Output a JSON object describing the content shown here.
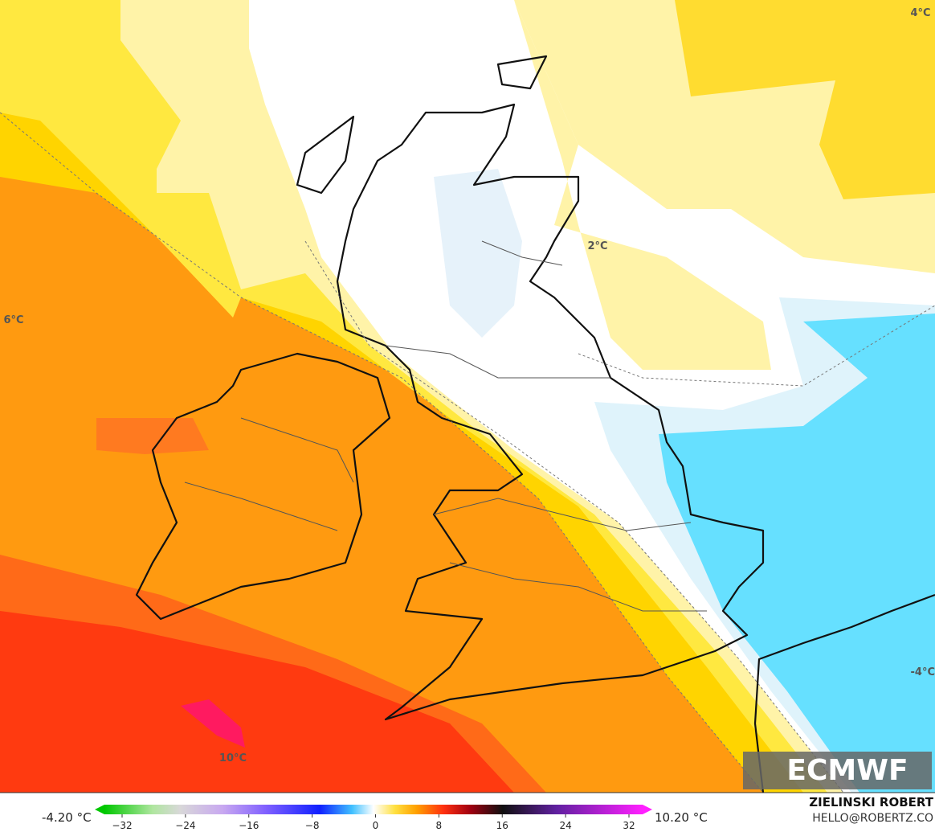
{
  "map_labels": [
    "4°C",
    "2°C",
    "6°C",
    "10°C",
    "-4°C"
  ],
  "logo": "ECMWF",
  "colorbar": {
    "min_label": "-4.20 °C",
    "max_label": "10.20 °C",
    "ticks": [
      "−32",
      "−24",
      "−16",
      "−8",
      "0",
      "8",
      "16",
      "24",
      "32"
    ]
  },
  "credits": {
    "name": "ZIELINSKI ROBERT",
    "email": "HELLO@ROBERTZ.CO"
  }
}
